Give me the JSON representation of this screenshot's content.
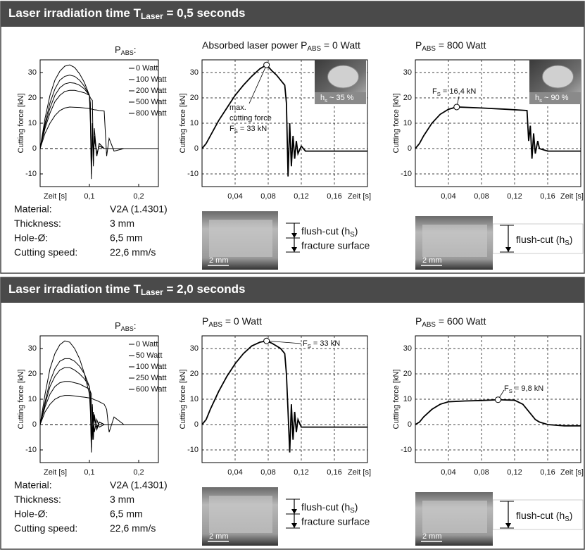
{
  "panels": [
    {
      "header": {
        "text": "Laser irradiation time T",
        "sub": "Laser",
        "rest": " = 0,5 seconds"
      },
      "material": [
        [
          "Material:",
          "V2A (1.4301)"
        ],
        [
          "Thickness:",
          "3 mm"
        ],
        [
          "Hole-Ø:",
          "6,5 mm"
        ],
        [
          "Cutting speed:",
          "22,6 mm/s"
        ]
      ],
      "micrographs": [
        {
          "scale": "2 mm",
          "labels": [
            {
              "text": "flush-cut (h",
              "sub": "S",
              "rest": ")"
            },
            "fracture surface"
          ]
        },
        {
          "scale": "2 mm",
          "labels": [
            {
              "text": "flush-cut (h",
              "sub": "S",
              "rest": ")"
            }
          ]
        }
      ]
    },
    {
      "header": {
        "text": "Laser irradiation time T",
        "sub": "Laser",
        "rest": " = 2,0 seconds"
      },
      "material": [
        [
          "Material:",
          "V2A (1.4301)"
        ],
        [
          "Thickness:",
          "3 mm"
        ],
        [
          "Hole-Ø:",
          "6,5 mm"
        ],
        [
          "Cutting speed:",
          "22,6 mm/s"
        ]
      ],
      "micrographs": [
        {
          "scale": "2 mm",
          "labels": [
            {
              "text": "flush-cut (h",
              "sub": "S",
              "rest": ")"
            },
            "fracture surface"
          ]
        },
        {
          "scale": "2 mm",
          "labels": [
            {
              "text": "flush-cut (h",
              "sub": "S",
              "rest": ")"
            }
          ]
        }
      ]
    }
  ],
  "chart_data": [
    {
      "type": "line",
      "legend_title": {
        "text": "P",
        "sub": "ABS",
        "rest": ":"
      },
      "xlabel": "Zeit [s]",
      "ylabel": "Cutting force [kN]",
      "x": [
        0,
        0.01,
        0.02,
        0.03,
        0.04,
        0.05,
        0.06,
        0.07,
        0.08,
        0.09,
        0.1,
        0.102,
        0.104,
        0.106,
        0.108,
        0.11,
        0.115,
        0.12,
        0.13,
        0.135,
        0.14,
        0.15,
        0.17,
        0.2,
        0.24
      ],
      "series": [
        {
          "name": "0 Watt",
          "color": "#000000",
          "values": [
            0,
            12,
            21,
            27,
            30.5,
            32.5,
            33,
            32,
            29.5,
            26,
            21,
            10,
            -12,
            9,
            -7,
            5,
            -3,
            2,
            0,
            0,
            0,
            0,
            0,
            0,
            0
          ]
        },
        {
          "name": "100 Watt",
          "color": "#000000",
          "values": [
            0,
            10,
            18,
            23.5,
            27,
            28.5,
            29,
            28.5,
            27,
            24.5,
            21,
            12,
            -10,
            8,
            -6,
            4,
            -2,
            1,
            0,
            0,
            0,
            0,
            0,
            0,
            0
          ]
        },
        {
          "name": "200 Watt",
          "color": "#000000",
          "values": [
            0,
            9,
            16,
            21,
            24,
            25.5,
            26,
            25.8,
            25,
            23.5,
            21,
            18,
            -8,
            10,
            -5,
            5,
            -2,
            1,
            0,
            0,
            0,
            0,
            0,
            0,
            0
          ]
        },
        {
          "name": "500 Watt",
          "color": "#000000",
          "values": [
            0,
            8,
            14,
            18.5,
            21,
            22.5,
            23,
            23,
            22.5,
            22,
            21,
            20,
            19.5,
            19,
            -5,
            8,
            -3,
            2,
            0,
            0,
            0,
            0,
            0,
            0,
            0
          ]
        },
        {
          "name": "800 Watt",
          "color": "#000000",
          "values": [
            0,
            6,
            10,
            13,
            15,
            16,
            16.4,
            16.3,
            16.2,
            16,
            15.8,
            15.7,
            15.6,
            15.5,
            15.4,
            15.3,
            15.2,
            15,
            14.8,
            -3,
            4,
            -1,
            0,
            0,
            0
          ]
        }
      ],
      "xlim": [
        0,
        0.24
      ],
      "xticks": [
        {
          "value": 0.1,
          "label": "0,1"
        },
        {
          "value": 0.2,
          "label": "0,2"
        }
      ],
      "ylim": [
        -15,
        35
      ],
      "yticks": [
        -10,
        0,
        10,
        20,
        30
      ],
      "grid": false,
      "zero_line": true
    },
    {
      "type": "line",
      "title": {
        "text": "Absorbed laser power P",
        "sub": "ABS",
        "rest": " = 0 Watt"
      },
      "xlabel": "Zeit [s]",
      "ylabel": "Cutting force [kN]",
      "annotation": [
        "max.",
        "cutting force",
        {
          "text": "F",
          "sub": "S",
          "rest": " = 33 kN"
        }
      ],
      "inset_label": {
        "text": "h",
        "sub": "s",
        "rest": " ~ 35 %"
      },
      "x": [
        0,
        0.005,
        0.01,
        0.02,
        0.03,
        0.04,
        0.05,
        0.06,
        0.07,
        0.078,
        0.085,
        0.09,
        0.095,
        0.1,
        0.102,
        0.104,
        0.106,
        0.108,
        0.11,
        0.112,
        0.114,
        0.116,
        0.12,
        0.125,
        0.13,
        0.14,
        0.16,
        0.18,
        0.2
      ],
      "values": [
        0,
        2,
        5,
        11,
        16,
        21,
        25,
        28.5,
        31.5,
        33,
        30.5,
        29,
        27,
        25,
        18,
        -11,
        10,
        -7,
        5,
        -4,
        3,
        -2,
        1,
        -1,
        -1,
        -1,
        -1,
        -1,
        -1
      ],
      "color": "#000000",
      "xlim": [
        0,
        0.2
      ],
      "xticks": [
        {
          "value": 0.04,
          "label": "0,04"
        },
        {
          "value": 0.08,
          "label": "0,08"
        },
        {
          "value": 0.12,
          "label": "0,12"
        },
        {
          "value": 0.16,
          "label": "0,16"
        }
      ],
      "ylim": [
        -15,
        35
      ],
      "yticks": [
        -10,
        0,
        10,
        20,
        30
      ],
      "grid": true
    },
    {
      "type": "line",
      "title": {
        "text": "P",
        "sub": "ABS",
        "rest": " = 800 Watt"
      },
      "xlabel": "Zeit [s]",
      "ylabel": "Cutting force [kN]",
      "annotation": [
        {
          "text": "F",
          "sub": "S",
          "rest": " = 16,4 kN"
        }
      ],
      "inset_label": {
        "text": "h",
        "sub": "s",
        "rest": " ~ 90 %"
      },
      "x": [
        0,
        0.005,
        0.01,
        0.02,
        0.03,
        0.04,
        0.05,
        0.08,
        0.11,
        0.135,
        0.137,
        0.139,
        0.141,
        0.143,
        0.145,
        0.148,
        0.15,
        0.16,
        0.18,
        0.2
      ],
      "values": [
        0,
        2,
        5,
        10,
        13.5,
        15.5,
        16.4,
        16,
        15.5,
        15,
        3,
        9,
        -4,
        6,
        -2,
        3,
        0,
        -1,
        -1,
        -1
      ],
      "color": "#000000",
      "xlim": [
        0,
        0.2
      ],
      "xticks": [
        {
          "value": 0.04,
          "label": "0,04"
        },
        {
          "value": 0.08,
          "label": "0,08"
        },
        {
          "value": 0.12,
          "label": "0,12"
        },
        {
          "value": 0.16,
          "label": "0,16"
        }
      ],
      "ylim": [
        -15,
        35
      ],
      "yticks": [
        -10,
        0,
        10,
        20,
        30
      ],
      "grid": true
    },
    {
      "type": "line",
      "legend_title": {
        "text": "P",
        "sub": "ABS",
        "rest": ":"
      },
      "xlabel": "Zeit [s]",
      "ylabel": "Cutting force [kN]",
      "x": [
        0,
        0.01,
        0.02,
        0.03,
        0.04,
        0.05,
        0.06,
        0.07,
        0.08,
        0.09,
        0.1,
        0.102,
        0.104,
        0.106,
        0.108,
        0.11,
        0.115,
        0.12,
        0.13,
        0.135,
        0.14,
        0.15,
        0.17,
        0.2,
        0.24
      ],
      "series": [
        {
          "name": "0 Watt",
          "color": "#000000",
          "values": [
            0,
            12,
            22,
            28,
            31.5,
            33,
            32.5,
            30,
            26,
            20,
            12,
            5,
            -11,
            8,
            -6,
            4,
            -2,
            1,
            0,
            0,
            0,
            0,
            0,
            0,
            0
          ]
        },
        {
          "name": "50 Watt",
          "color": "#000000",
          "values": [
            0,
            9,
            17,
            22,
            25,
            26,
            26,
            25,
            23,
            20,
            15,
            10,
            -9,
            7,
            -5,
            3,
            -2,
            1,
            0,
            0,
            0,
            0,
            0,
            0,
            0
          ]
        },
        {
          "name": "100 Watt",
          "color": "#000000",
          "values": [
            0,
            8,
            15,
            19,
            21.5,
            22.5,
            22.5,
            21.5,
            20,
            18,
            15,
            12,
            -7,
            6,
            -4,
            3,
            -1,
            1,
            0,
            0,
            0,
            0,
            0,
            0,
            0
          ]
        },
        {
          "name": "250 Watt",
          "color": "#000000",
          "values": [
            0,
            7,
            12,
            15,
            16.5,
            17,
            17,
            16.5,
            16,
            15,
            14,
            13,
            12,
            -6,
            5,
            -3,
            2,
            -1,
            0,
            0,
            0,
            0,
            0,
            0,
            0
          ]
        },
        {
          "name": "600 Watt",
          "color": "#000000",
          "values": [
            0,
            5,
            8,
            10,
            11,
            11.5,
            11.5,
            11.3,
            11,
            10.8,
            10.5,
            10.4,
            10.3,
            10.2,
            10,
            9.8,
            9.5,
            9,
            8,
            6,
            -3,
            3,
            0,
            0,
            0
          ]
        }
      ],
      "xlim": [
        0,
        0.24
      ],
      "xticks": [
        {
          "value": 0.1,
          "label": "0,1"
        },
        {
          "value": 0.2,
          "label": "0,2"
        }
      ],
      "ylim": [
        -15,
        35
      ],
      "yticks": [
        -10,
        0,
        10,
        20,
        30
      ],
      "grid": false,
      "zero_line": true
    },
    {
      "type": "line",
      "title": {
        "text": "P",
        "sub": "ABS",
        "rest": " = 0 Watt"
      },
      "xlabel": "Zeit [s]",
      "ylabel": "Cutting force [kN]",
      "annotation": [
        {
          "text": "F",
          "sub": "S",
          "rest": " = 33 kN"
        }
      ],
      "x": [
        0,
        0.005,
        0.01,
        0.02,
        0.03,
        0.04,
        0.05,
        0.06,
        0.07,
        0.078,
        0.085,
        0.09,
        0.095,
        0.1,
        0.102,
        0.104,
        0.106,
        0.108,
        0.11,
        0.112,
        0.114,
        0.116,
        0.12,
        0.125,
        0.13,
        0.14,
        0.16,
        0.18,
        0.2
      ],
      "values": [
        0,
        2,
        6,
        13,
        19,
        24,
        28,
        31,
        32.5,
        33,
        32,
        31,
        30,
        28,
        20,
        5,
        -11,
        8,
        -6,
        5,
        -3,
        2,
        -1,
        -1,
        -1,
        -1,
        -1,
        -1,
        -1
      ],
      "color": "#000000",
      "xlim": [
        0,
        0.2
      ],
      "xticks": [
        {
          "value": 0.04,
          "label": "0,04"
        },
        {
          "value": 0.08,
          "label": "0,08"
        },
        {
          "value": 0.12,
          "label": "0,12"
        },
        {
          "value": 0.16,
          "label": "0,16"
        }
      ],
      "ylim": [
        -15,
        35
      ],
      "yticks": [
        -10,
        0,
        10,
        20,
        30
      ],
      "grid": true
    },
    {
      "type": "line",
      "title": {
        "text": "P",
        "sub": "ABS",
        "rest": " = 600 Watt"
      },
      "xlabel": "Zeit [s]",
      "ylabel": "Cutting force [kN]",
      "annotation": [
        {
          "text": "F",
          "sub": "S",
          "rest": " = 9,8 kN"
        }
      ],
      "x": [
        0,
        0.005,
        0.01,
        0.02,
        0.03,
        0.04,
        0.06,
        0.08,
        0.1,
        0.12,
        0.13,
        0.14,
        0.145,
        0.15,
        0.16,
        0.18,
        0.2
      ],
      "values": [
        0,
        1,
        3,
        6,
        8,
        9,
        9.3,
        9.5,
        9.8,
        9.6,
        8,
        4,
        2,
        1,
        0,
        -0.5,
        -0.5
      ],
      "color": "#000000",
      "xlim": [
        0,
        0.2
      ],
      "xticks": [
        {
          "value": 0.04,
          "label": "0,04"
        },
        {
          "value": 0.08,
          "label": "0,08"
        },
        {
          "value": 0.12,
          "label": "0,12"
        },
        {
          "value": 0.16,
          "label": "0,16"
        }
      ],
      "ylim": [
        -15,
        35
      ],
      "yticks": [
        -10,
        0,
        10,
        20,
        30
      ],
      "grid": true
    }
  ]
}
